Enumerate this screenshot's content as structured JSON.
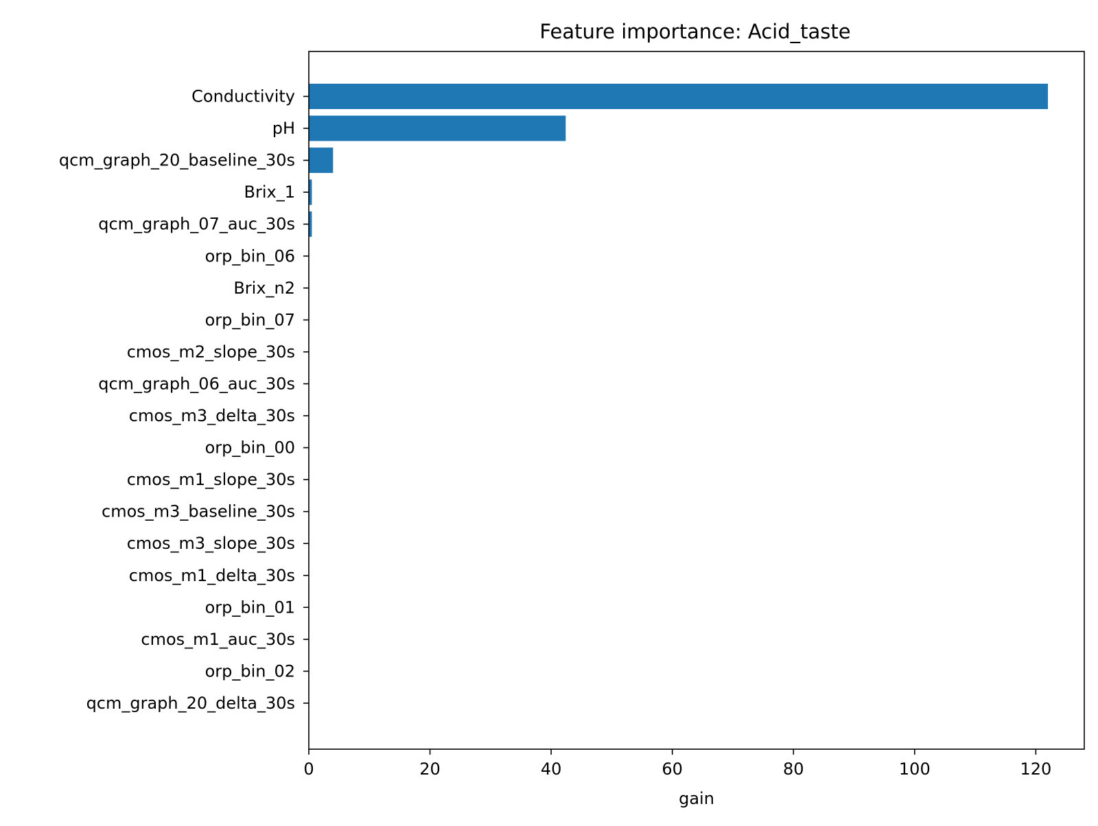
{
  "chart_data": {
    "type": "bar",
    "orientation": "horizontal",
    "title": "Feature importance: Acid_taste",
    "xlabel": "gain",
    "ylabel": "",
    "xlim": [
      0,
      128
    ],
    "xticks": [
      0,
      20,
      40,
      60,
      80,
      100,
      120
    ],
    "grid": false,
    "bar_color": "#1f77b4",
    "categories": [
      "Conductivity",
      "pH",
      "qcm_graph_20_baseline_30s",
      "Brix_1",
      "qcm_graph_07_auc_30s",
      "orp_bin_06",
      "Brix_n2",
      "orp_bin_07",
      "cmos_m2_slope_30s",
      "qcm_graph_06_auc_30s",
      "cmos_m3_delta_30s",
      "orp_bin_00",
      "cmos_m1_slope_30s",
      "cmos_m3_baseline_30s",
      "cmos_m3_slope_30s",
      "cmos_m1_delta_30s",
      "orp_bin_01",
      "cmos_m1_auc_30s",
      "orp_bin_02",
      "qcm_graph_20_delta_30s"
    ],
    "values": [
      122,
      42.4,
      4.0,
      0.5,
      0.5,
      0,
      0,
      0,
      0,
      0,
      0,
      0,
      0,
      0,
      0,
      0,
      0,
      0,
      0,
      0
    ]
  }
}
